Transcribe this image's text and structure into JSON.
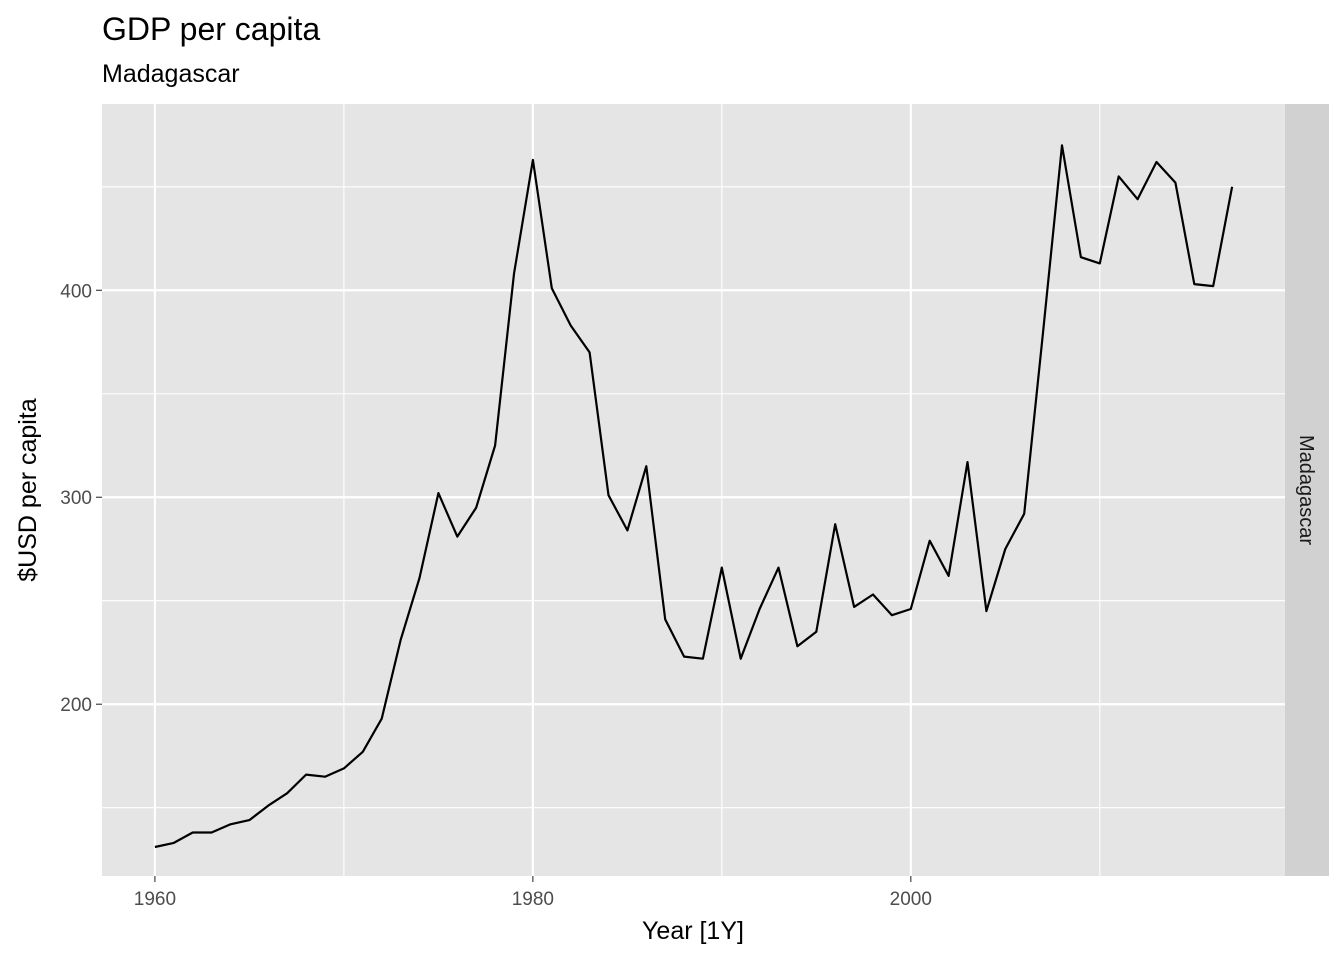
{
  "chart_data": {
    "type": "line",
    "title": "GDP per capita",
    "subtitle": "Madagascar",
    "xlabel": "Year [1Y]",
    "ylabel": "$USD per capita",
    "facet_label": "Madagascar",
    "xlim": [
      1957.2,
      2019.8
    ],
    "ylim": [
      117,
      490
    ],
    "x_ticks": [
      1960,
      1980,
      2000
    ],
    "x_minor_ticks": [
      1970,
      1990,
      2010
    ],
    "y_ticks": [
      200,
      300,
      400
    ],
    "y_minor_ticks": [
      150,
      250,
      350,
      450
    ],
    "grid": true,
    "legend": "none",
    "colors": {
      "panel": "#e5e5e5",
      "grid": "#ffffff",
      "line": "#000000",
      "strip": "#d1d1d1"
    },
    "series": [
      {
        "x": [
          1960,
          1961,
          1962,
          1963,
          1964,
          1965,
          1966,
          1967,
          1968,
          1969,
          1970,
          1971,
          1972,
          1973,
          1974,
          1975,
          1976,
          1977,
          1978,
          1979,
          1980,
          1981,
          1982,
          1983,
          1984,
          1985,
          1986,
          1987,
          1988,
          1989,
          1990,
          1991,
          1992,
          1993,
          1994,
          1995,
          1996,
          1997,
          1998,
          1999,
          2000,
          2001,
          2002,
          2003,
          2004,
          2005,
          2006,
          2007,
          2008,
          2009,
          2010,
          2011,
          2012,
          2013,
          2014,
          2015,
          2016,
          2017
        ],
        "values": [
          131,
          133,
          138,
          138,
          142,
          144,
          151,
          157,
          166,
          165,
          169,
          177,
          193,
          231,
          261,
          302,
          281,
          295,
          325,
          408,
          463,
          401,
          383,
          370,
          301,
          284,
          315,
          241,
          223,
          222,
          266,
          222,
          246,
          266,
          228,
          235,
          287,
          247,
          253,
          243,
          246,
          279,
          262,
          317,
          245,
          275,
          292,
          380,
          470,
          416,
          413,
          455,
          444,
          462,
          452,
          403,
          402,
          450
        ]
      }
    ]
  }
}
